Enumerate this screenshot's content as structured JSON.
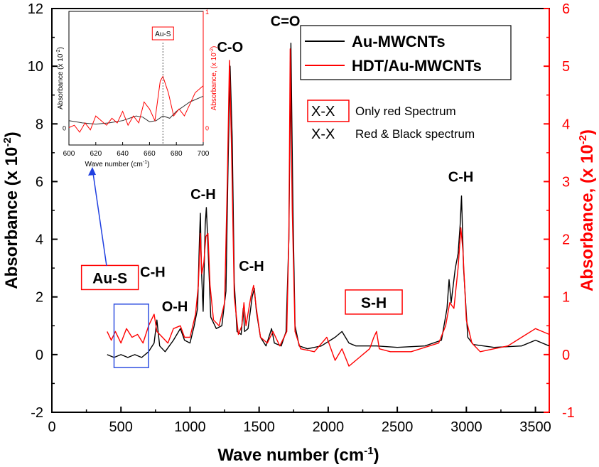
{
  "chart_data": {
    "type": "line",
    "x_axis": {
      "label_main": "Wave number (cm",
      "label_sup": "-1",
      "label_end": ")",
      "range": [
        0,
        3600
      ],
      "ticks": [
        "0",
        "500",
        "1000",
        "1500",
        "2000",
        "2500",
        "3000",
        "3500"
      ]
    },
    "y_left": {
      "label_main": "Absorbance (x 10",
      "label_sup": "-2",
      "label_end": ")",
      "range": [
        -2,
        12
      ],
      "ticks": [
        "-2",
        "0",
        "2",
        "4",
        "6",
        "8",
        "10",
        "12"
      ],
      "color": "#000000"
    },
    "y_right": {
      "label_main": "Absorbance, (x 10",
      "label_sup": "-2",
      "label_end": ")",
      "range": [
        -1,
        6
      ],
      "ticks": [
        "-1",
        "0",
        "1",
        "2",
        "3",
        "4",
        "5",
        "6"
      ],
      "color": "#ff0000"
    },
    "series": [
      {
        "name": "Au-MWCNTs",
        "color": "#000000",
        "axis": "left",
        "points": [
          [
            400,
            0.0
          ],
          [
            450,
            -0.1
          ],
          [
            500,
            0.0
          ],
          [
            550,
            -0.1
          ],
          [
            600,
            0.0
          ],
          [
            650,
            -0.1
          ],
          [
            700,
            0.1
          ],
          [
            740,
            0.4
          ],
          [
            760,
            1.2
          ],
          [
            780,
            0.3
          ],
          [
            820,
            0.1
          ],
          [
            880,
            0.5
          ],
          [
            930,
            0.9
          ],
          [
            960,
            0.5
          ],
          [
            1000,
            0.4
          ],
          [
            1030,
            1.0
          ],
          [
            1055,
            1.6
          ],
          [
            1068,
            4.0
          ],
          [
            1075,
            4.9
          ],
          [
            1082,
            3.0
          ],
          [
            1095,
            1.5
          ],
          [
            1110,
            4.5
          ],
          [
            1118,
            5.1
          ],
          [
            1128,
            4.0
          ],
          [
            1150,
            1.3
          ],
          [
            1190,
            0.9
          ],
          [
            1230,
            1.0
          ],
          [
            1260,
            2.2
          ],
          [
            1275,
            6.5
          ],
          [
            1290,
            10.0
          ],
          [
            1305,
            7.5
          ],
          [
            1320,
            2.5
          ],
          [
            1340,
            0.8
          ],
          [
            1370,
            0.7
          ],
          [
            1385,
            1.6
          ],
          [
            1395,
            0.8
          ],
          [
            1420,
            0.9
          ],
          [
            1450,
            2.0
          ],
          [
            1465,
            2.3
          ],
          [
            1480,
            1.5
          ],
          [
            1510,
            0.6
          ],
          [
            1550,
            0.3
          ],
          [
            1590,
            0.9
          ],
          [
            1610,
            0.4
          ],
          [
            1660,
            0.3
          ],
          [
            1695,
            0.8
          ],
          [
            1715,
            4.0
          ],
          [
            1730,
            10.8
          ],
          [
            1745,
            5.0
          ],
          [
            1760,
            1.0
          ],
          [
            1790,
            0.3
          ],
          [
            1850,
            0.2
          ],
          [
            1950,
            0.3
          ],
          [
            2050,
            0.6
          ],
          [
            2100,
            0.8
          ],
          [
            2150,
            0.4
          ],
          [
            2200,
            0.3
          ],
          [
            2350,
            0.3
          ],
          [
            2500,
            0.25
          ],
          [
            2700,
            0.3
          ],
          [
            2820,
            0.5
          ],
          [
            2860,
            1.6
          ],
          [
            2875,
            2.6
          ],
          [
            2890,
            1.8
          ],
          [
            2920,
            3.0
          ],
          [
            2940,
            3.5
          ],
          [
            2955,
            4.5
          ],
          [
            2965,
            5.5
          ],
          [
            2980,
            3.0
          ],
          [
            3010,
            0.6
          ],
          [
            3050,
            0.35
          ],
          [
            3200,
            0.25
          ],
          [
            3400,
            0.3
          ],
          [
            3500,
            0.5
          ],
          [
            3600,
            0.3
          ]
        ]
      },
      {
        "name": "HDT/Au-MWCNTs",
        "color": "#ff0000",
        "axis": "right",
        "points": [
          [
            400,
            0.4
          ],
          [
            430,
            0.25
          ],
          [
            460,
            0.4
          ],
          [
            500,
            0.2
          ],
          [
            540,
            0.45
          ],
          [
            580,
            0.3
          ],
          [
            620,
            0.35
          ],
          [
            660,
            0.2
          ],
          [
            700,
            0.5
          ],
          [
            740,
            0.7
          ],
          [
            760,
            0.4
          ],
          [
            800,
            0.3
          ],
          [
            840,
            0.2
          ],
          [
            880,
            0.45
          ],
          [
            930,
            0.5
          ],
          [
            960,
            0.3
          ],
          [
            1000,
            0.3
          ],
          [
            1040,
            0.7
          ],
          [
            1060,
            1.2
          ],
          [
            1075,
            2.1
          ],
          [
            1085,
            1.4
          ],
          [
            1100,
            1.6
          ],
          [
            1115,
            2.05
          ],
          [
            1130,
            2.1
          ],
          [
            1145,
            1.2
          ],
          [
            1170,
            0.6
          ],
          [
            1210,
            0.5
          ],
          [
            1250,
            0.9
          ],
          [
            1270,
            3.0
          ],
          [
            1285,
            5.1
          ],
          [
            1300,
            3.6
          ],
          [
            1320,
            1.0
          ],
          [
            1350,
            0.35
          ],
          [
            1375,
            0.5
          ],
          [
            1390,
            0.9
          ],
          [
            1405,
            0.5
          ],
          [
            1440,
            1.0
          ],
          [
            1460,
            1.2
          ],
          [
            1480,
            0.8
          ],
          [
            1510,
            0.3
          ],
          [
            1560,
            0.2
          ],
          [
            1600,
            0.4
          ],
          [
            1650,
            0.15
          ],
          [
            1700,
            0.4
          ],
          [
            1715,
            2.0
          ],
          [
            1725,
            5.3
          ],
          [
            1740,
            2.5
          ],
          [
            1760,
            0.4
          ],
          [
            1800,
            0.1
          ],
          [
            1900,
            0.05
          ],
          [
            1990,
            0.3
          ],
          [
            2050,
            -0.1
          ],
          [
            2100,
            0.1
          ],
          [
            2150,
            -0.2
          ],
          [
            2200,
            -0.1
          ],
          [
            2300,
            0.1
          ],
          [
            2330,
            0.3
          ],
          [
            2350,
            0.4
          ],
          [
            2370,
            0.1
          ],
          [
            2450,
            0.05
          ],
          [
            2600,
            0.05
          ],
          [
            2800,
            0.2
          ],
          [
            2850,
            0.5
          ],
          [
            2880,
            0.9
          ],
          [
            2910,
            0.8
          ],
          [
            2940,
            1.5
          ],
          [
            2960,
            2.2
          ],
          [
            2975,
            1.8
          ],
          [
            3000,
            0.6
          ],
          [
            3040,
            0.2
          ],
          [
            3100,
            0.05
          ],
          [
            3200,
            0.1
          ],
          [
            3300,
            0.15
          ],
          [
            3400,
            0.3
          ],
          [
            3500,
            0.45
          ],
          [
            3550,
            0.4
          ],
          [
            3600,
            0.35
          ]
        ]
      }
    ],
    "legend": {
      "placement": "top-right",
      "entries": [
        "Au-MWCNTs",
        "HDT/Au-MWCNTs"
      ]
    },
    "peak_labels": [
      {
        "text": "C=O",
        "x": 1690,
        "y": 11.4
      },
      {
        "text": "C-O",
        "x": 1290,
        "y": 10.5
      },
      {
        "text": "C-H",
        "x": 1095,
        "y": 5.4
      },
      {
        "text": "C-H",
        "x": 1445,
        "y": 2.9
      },
      {
        "text": "C-H",
        "x": 730,
        "y": 2.7
      },
      {
        "text": "O-H",
        "x": 890,
        "y": 1.5
      },
      {
        "text": "C-H",
        "x": 2960,
        "y": 6.0
      }
    ],
    "boxed_labels": [
      {
        "text": "Au-S",
        "x": 420,
        "y": 2.5
      },
      {
        "text": "S-H",
        "x": 2330,
        "y": 1.65
      }
    ],
    "legend_notes": [
      {
        "marker": "X-X",
        "text": "Only red Spectrum",
        "boxed": true
      },
      {
        "marker": "X-X",
        "text": "Red & Black spectrum",
        "boxed": false
      }
    ],
    "inset": {
      "x_range": [
        600,
        700
      ],
      "y_left_label_main": "Absorbance (x 10",
      "y_left_label_sup": "-2",
      "y_left_label_end": ")",
      "y_left_ticks": [
        "0"
      ],
      "y_right_ticks": [
        "0",
        "1"
      ],
      "y_right_label_main": "Absorbance, (x 10",
      "y_right_label_sup": "-2",
      "y_right_label_end": ")",
      "x_label_main": "Wave number (cm",
      "x_label_sup": "-1",
      "x_label_end": ")",
      "x_ticks": [
        "600",
        "620",
        "640",
        "660",
        "680",
        "700"
      ],
      "peak_label": "Au-S",
      "peak_x": 670,
      "black_points": [
        [
          600,
          0.06
        ],
        [
          605,
          0.05
        ],
        [
          610,
          0.04
        ],
        [
          620,
          0.03
        ],
        [
          630,
          0.04
        ],
        [
          640,
          0.06
        ],
        [
          650,
          0.1
        ],
        [
          655,
          0.09
        ],
        [
          660,
          0.05
        ],
        [
          665,
          0.06
        ],
        [
          670,
          0.1
        ],
        [
          675,
          0.08
        ],
        [
          680,
          0.14
        ],
        [
          690,
          0.22
        ],
        [
          700,
          0.27
        ]
      ],
      "red_points": [
        [
          600,
          0.0
        ],
        [
          604,
          0.02
        ],
        [
          608,
          -0.04
        ],
        [
          612,
          0.04
        ],
        [
          616,
          -0.02
        ],
        [
          620,
          0.1
        ],
        [
          624,
          0.06
        ],
        [
          628,
          0.02
        ],
        [
          632,
          0.08
        ],
        [
          636,
          0.04
        ],
        [
          640,
          0.14
        ],
        [
          644,
          0.02
        ],
        [
          648,
          0.1
        ],
        [
          652,
          0.04
        ],
        [
          656,
          0.22
        ],
        [
          660,
          0.16
        ],
        [
          664,
          0.06
        ],
        [
          668,
          0.4
        ],
        [
          670,
          0.44
        ],
        [
          674,
          0.3
        ],
        [
          678,
          0.1
        ],
        [
          682,
          0.16
        ],
        [
          686,
          0.1
        ],
        [
          690,
          0.2
        ],
        [
          694,
          0.3
        ],
        [
          700,
          0.36
        ]
      ]
    }
  }
}
